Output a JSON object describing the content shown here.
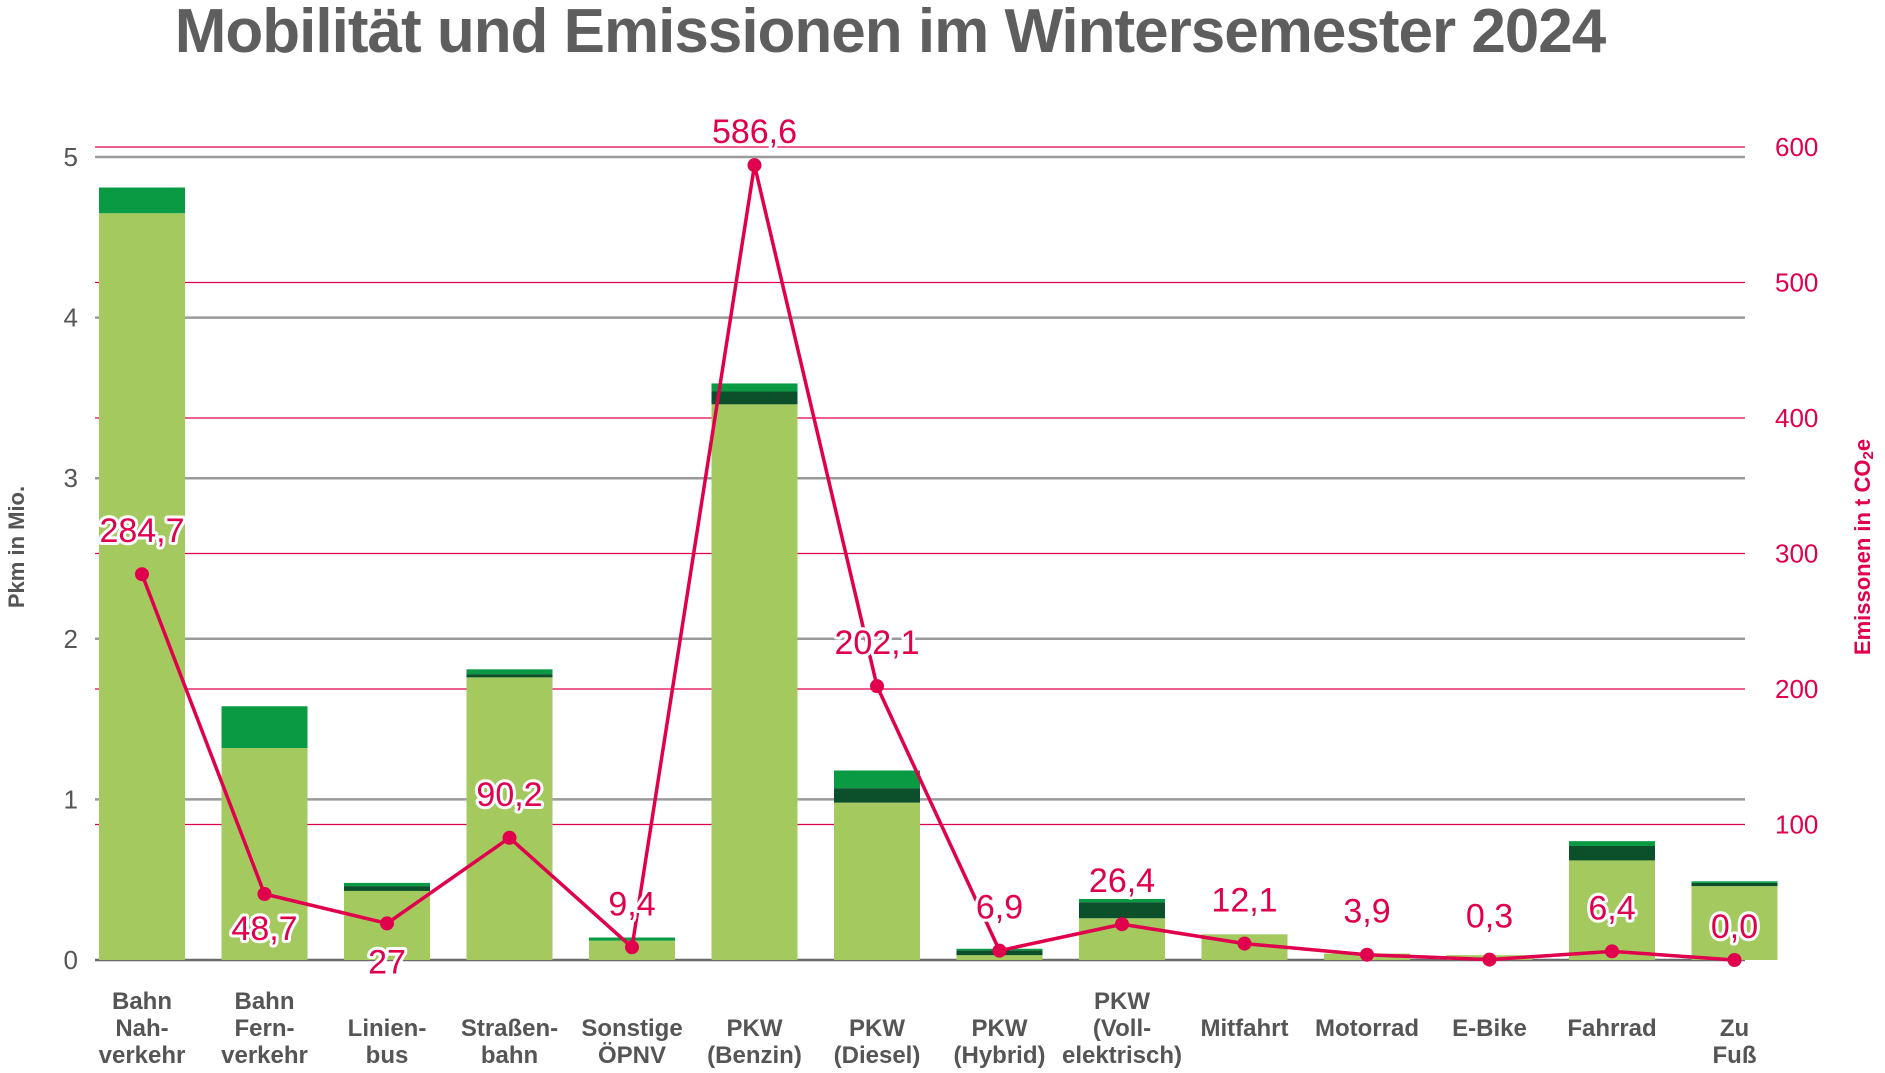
{
  "chart_data": {
    "type": "bar",
    "title": "Mobilität und Emissionen im Wintersemester 2024",
    "ylabel_left": "Pkm in Mio.",
    "ylabel_right_text": "Emissonen in t CO",
    "ylabel_right_sub": "2",
    "ylabel_right_tail": "e",
    "ylim_left": [
      0,
      5
    ],
    "ylim_right": [
      0,
      600
    ],
    "yticks_left": [
      "0",
      "1",
      "2",
      "3",
      "4",
      "5"
    ],
    "yticks_right": [
      "100",
      "200",
      "300",
      "400",
      "500",
      "600"
    ],
    "grid": true,
    "categories": [
      [
        "Bahn",
        "Nah-",
        "verkehr"
      ],
      [
        "Bahn",
        "Fern-",
        "verkehr"
      ],
      [
        "Linien-",
        "bus"
      ],
      [
        "Straßen-",
        "bahn"
      ],
      [
        "Sonstige",
        "ÖPNV"
      ],
      [
        "PKW",
        "(Benzin)"
      ],
      [
        "PKW",
        "(Diesel)"
      ],
      [
        "PKW",
        "(Hybrid)"
      ],
      [
        "PKW",
        "(Voll-",
        "elektrisch)"
      ],
      [
        "Mitfahrt"
      ],
      [
        "Motorrad"
      ],
      [
        "E-Bike"
      ],
      [
        "Fahrrad"
      ],
      [
        "Zu",
        "Fuß"
      ]
    ],
    "series": [
      {
        "type": "bar",
        "color": "#a3c95f",
        "values": [
          4.65,
          1.32,
          0.43,
          1.76,
          0.12,
          3.46,
          0.98,
          0.03,
          0.26,
          0.16,
          0.04,
          0.03,
          0.62,
          0.46
        ]
      },
      {
        "type": "bar",
        "color": "#0b4f2b",
        "values": [
          0.0,
          0.0,
          0.03,
          0.02,
          0.0,
          0.08,
          0.09,
          0.03,
          0.1,
          0.0,
          0.0,
          0.0,
          0.09,
          0.02
        ]
      },
      {
        "type": "bar",
        "color": "#0a9a44",
        "values": [
          0.16,
          0.26,
          0.02,
          0.03,
          0.02,
          0.05,
          0.11,
          0.01,
          0.02,
          0.0,
          0.0,
          0.0,
          0.03,
          0.01
        ]
      },
      {
        "type": "line",
        "axis": "right",
        "color": "#e0004d",
        "values": [
          284.7,
          48.7,
          27,
          90.2,
          9.4,
          586.6,
          202.1,
          6.9,
          26.4,
          12.1,
          3.9,
          0.3,
          6.4,
          0.0
        ],
        "labels": [
          "284,7",
          "48,7",
          "27",
          "90,2",
          "9,4",
          "586,6",
          "202,1",
          "6,9",
          "26,4",
          "12,1",
          "3,9",
          "0,3",
          "6,4",
          "0,0"
        ]
      }
    ]
  }
}
